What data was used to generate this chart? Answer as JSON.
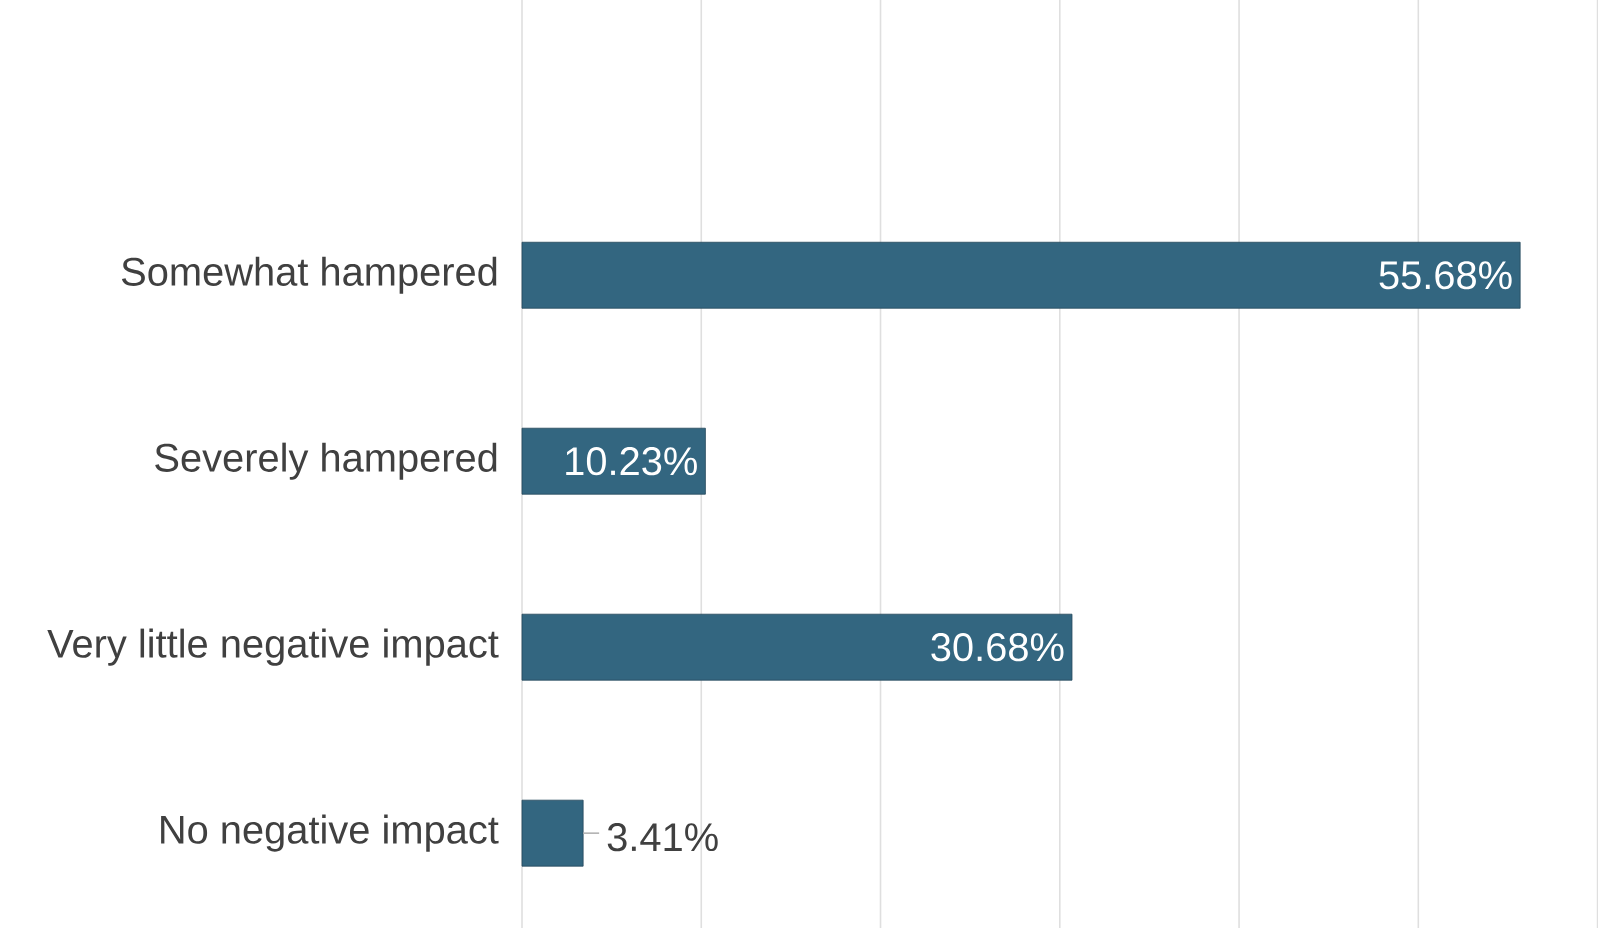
{
  "chart_data": {
    "type": "bar",
    "orientation": "horizontal",
    "categories": [
      "Somewhat hampered",
      "Severely hampered",
      "Very little negative impact",
      "No negative impact"
    ],
    "values": [
      55.68,
      10.23,
      30.68,
      3.41
    ],
    "value_labels": [
      "55.68%",
      "10.23%",
      "30.68%",
      "3.41%"
    ],
    "color": "#336680",
    "grid": "x",
    "tick_labels": "y"
  }
}
